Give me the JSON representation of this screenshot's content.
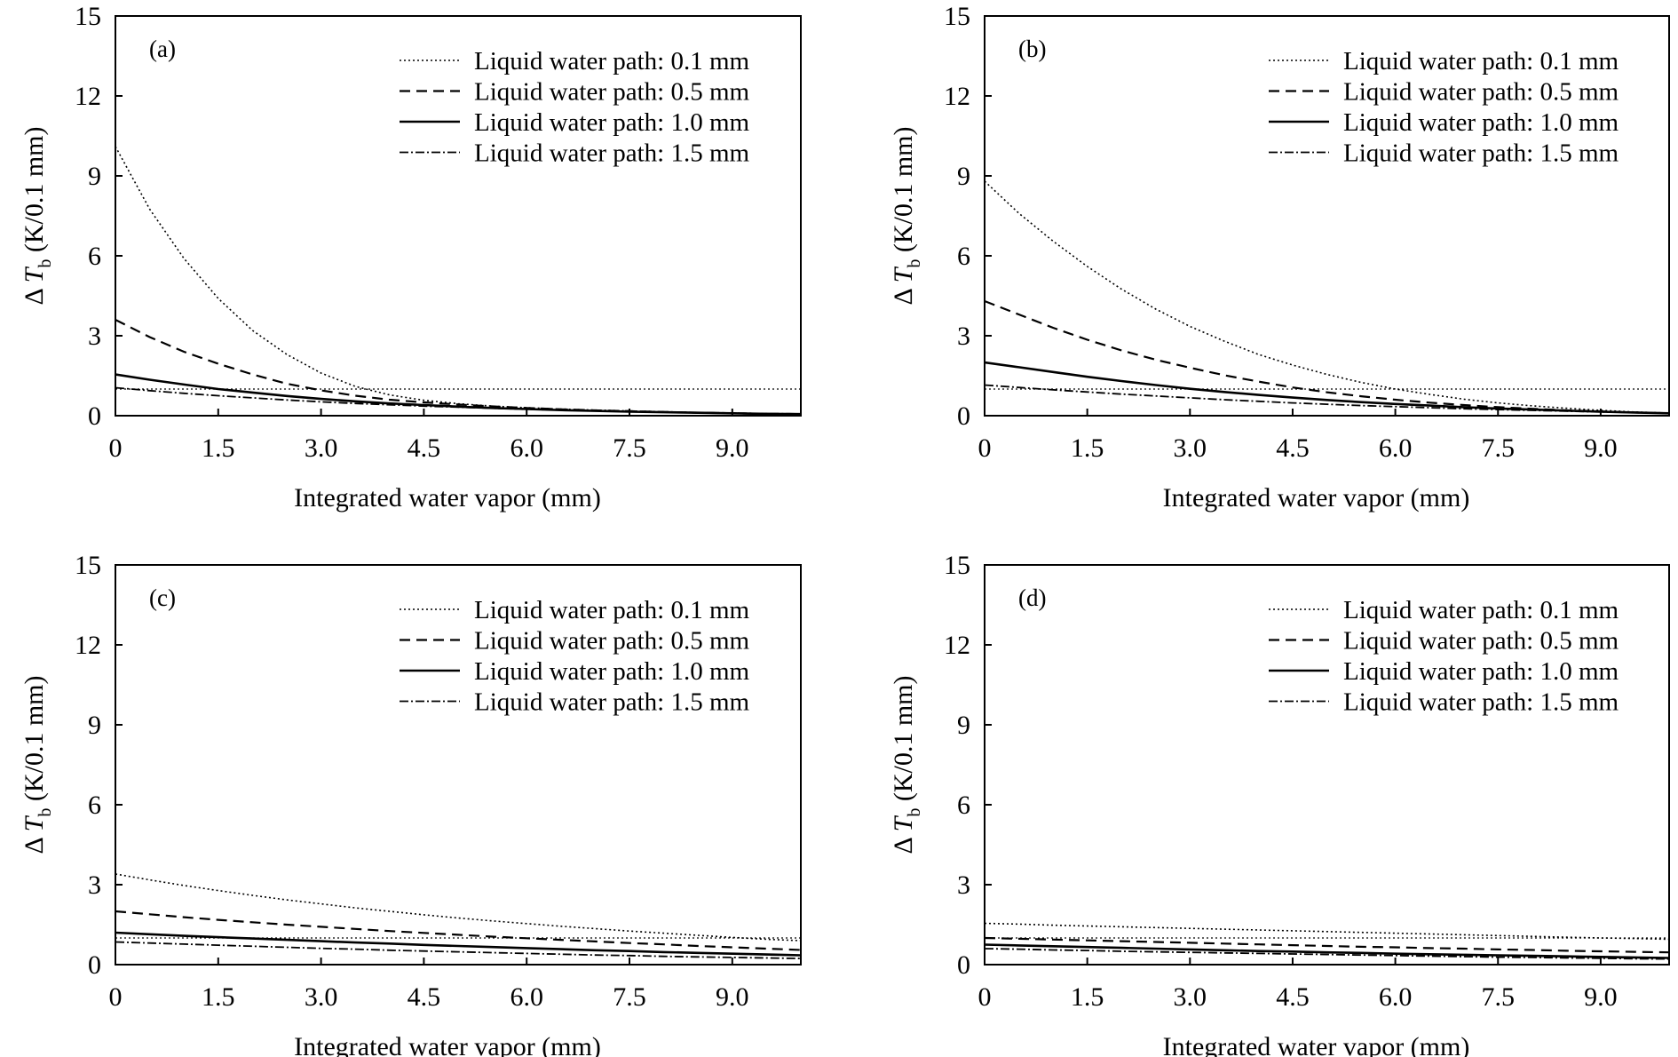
{
  "figure": {
    "y_title_prefix": "Δ ",
    "y_title_var": "T",
    "y_title_sub": "b",
    "y_title_unit": " (K/0.1 mm)",
    "colors": {
      "ink": "#000000",
      "background": "#ffffff"
    }
  },
  "chart_data": [
    {
      "panel": "(a)",
      "type": "line",
      "xlabel": "Integrated water vapor (mm)",
      "ylabel": "ΔTb (K/0.1 mm)",
      "xlim": [
        0,
        10
      ],
      "ylim": [
        0,
        15
      ],
      "xticks": [
        "0",
        "1.5",
        "3.0",
        "4.5",
        "6.0",
        "7.5",
        "9.0"
      ],
      "yticks": [
        "0",
        "3",
        "6",
        "9",
        "12",
        "15"
      ],
      "legend_position": "top-right",
      "x": [
        0,
        0.5,
        1,
        1.5,
        2,
        2.5,
        3,
        3.5,
        4,
        4.5,
        5,
        5.5,
        6,
        6.5,
        7,
        7.5,
        8,
        8.5,
        9,
        9.5,
        10
      ],
      "series": [
        {
          "name": "Liquid water path: 0.1 mm",
          "style": "dotted",
          "values": [
            10.1,
            7.75,
            5.9,
            4.4,
            3.2,
            2.3,
            1.6,
            1.1,
            0.78,
            0.58,
            0.45,
            0.36,
            0.3,
            0.25,
            0.21,
            0.18,
            0.15,
            0.12,
            0.1,
            0.07,
            0.05
          ]
        },
        {
          "name": "Liquid water path: 0.5 mm",
          "style": "dashed",
          "values": [
            3.6,
            2.95,
            2.4,
            1.95,
            1.55,
            1.2,
            0.95,
            0.75,
            0.6,
            0.5,
            0.42,
            0.35,
            0.29,
            0.24,
            0.2,
            0.17,
            0.14,
            0.11,
            0.09,
            0.07,
            0.05
          ]
        },
        {
          "name": "Liquid water path: 1.0 mm",
          "style": "solid",
          "values": [
            1.55,
            1.35,
            1.17,
            1.0,
            0.87,
            0.74,
            0.63,
            0.54,
            0.46,
            0.4,
            0.34,
            0.29,
            0.25,
            0.21,
            0.18,
            0.15,
            0.13,
            0.11,
            0.09,
            0.07,
            0.06
          ]
        },
        {
          "name": "Liquid water path: 1.5 mm",
          "style": "dashdot",
          "values": [
            1.05,
            0.94,
            0.84,
            0.75,
            0.67,
            0.59,
            0.52,
            0.46,
            0.41,
            0.36,
            0.32,
            0.28,
            0.24,
            0.21,
            0.18,
            0.16,
            0.14,
            0.12,
            0.1,
            0.08,
            0.07
          ]
        }
      ],
      "reference_line": {
        "y": 1.0,
        "style": "dotted"
      }
    },
    {
      "panel": "(b)",
      "type": "line",
      "xlabel": "Integrated water vapor (mm)",
      "ylabel": "ΔTb (K/0.1 mm)",
      "xlim": [
        0,
        10
      ],
      "ylim": [
        0,
        15
      ],
      "xticks": [
        "0",
        "1.5",
        "3.0",
        "4.5",
        "6.0",
        "7.5",
        "9.0"
      ],
      "yticks": [
        "0",
        "3",
        "6",
        "9",
        "12",
        "15"
      ],
      "legend_position": "top-right",
      "x": [
        0,
        0.5,
        1,
        1.5,
        2,
        2.5,
        3,
        3.5,
        4,
        4.5,
        5,
        5.5,
        6,
        6.5,
        7,
        7.5,
        8,
        8.5,
        9,
        9.5,
        10
      ],
      "series": [
        {
          "name": "Liquid water path: 0.1 mm",
          "style": "dotted",
          "values": [
            8.8,
            7.6,
            6.55,
            5.6,
            4.75,
            4.0,
            3.35,
            2.8,
            2.3,
            1.9,
            1.55,
            1.25,
            1.0,
            0.8,
            0.62,
            0.48,
            0.37,
            0.28,
            0.2,
            0.14,
            0.1
          ]
        },
        {
          "name": "Liquid water path: 0.5 mm",
          "style": "dashed",
          "values": [
            4.3,
            3.8,
            3.3,
            2.85,
            2.45,
            2.1,
            1.8,
            1.52,
            1.28,
            1.06,
            0.88,
            0.73,
            0.6,
            0.49,
            0.4,
            0.32,
            0.26,
            0.2,
            0.16,
            0.12,
            0.09
          ]
        },
        {
          "name": "Liquid water path: 1.0 mm",
          "style": "solid",
          "values": [
            2.0,
            1.82,
            1.64,
            1.46,
            1.3,
            1.15,
            1.01,
            0.89,
            0.78,
            0.68,
            0.59,
            0.51,
            0.44,
            0.38,
            0.32,
            0.27,
            0.23,
            0.19,
            0.15,
            0.12,
            0.09
          ]
        },
        {
          "name": "Liquid water path: 1.5 mm",
          "style": "dashdot",
          "values": [
            1.15,
            1.06,
            0.97,
            0.89,
            0.81,
            0.74,
            0.67,
            0.6,
            0.54,
            0.48,
            0.43,
            0.38,
            0.34,
            0.3,
            0.26,
            0.23,
            0.2,
            0.17,
            0.14,
            0.12,
            0.1
          ]
        }
      ],
      "reference_line": {
        "y": 1.0,
        "style": "dotted"
      }
    },
    {
      "panel": "(c)",
      "type": "line",
      "xlabel": "Integrated water vapor (mm)",
      "ylabel": "ΔTb (K/0.1 mm)",
      "xlim": [
        0,
        10
      ],
      "ylim": [
        0,
        15
      ],
      "xticks": [
        "0",
        "1.5",
        "3.0",
        "4.5",
        "6.0",
        "7.5",
        "9.0"
      ],
      "yticks": [
        "0",
        "3",
        "6",
        "9",
        "12",
        "15"
      ],
      "legend_position": "top-right",
      "x": [
        0,
        0.5,
        1,
        1.5,
        2,
        2.5,
        3,
        3.5,
        4,
        4.5,
        5,
        5.5,
        6,
        6.5,
        7,
        7.5,
        8,
        8.5,
        9,
        9.5,
        10
      ],
      "series": [
        {
          "name": "Liquid water path: 0.1 mm",
          "style": "dotted",
          "values": [
            3.4,
            3.18,
            2.97,
            2.78,
            2.6,
            2.43,
            2.28,
            2.13,
            2.0,
            1.87,
            1.75,
            1.64,
            1.54,
            1.44,
            1.35,
            1.26,
            1.18,
            1.1,
            1.02,
            0.95,
            0.9
          ]
        },
        {
          "name": "Liquid water path: 0.5 mm",
          "style": "dashed",
          "values": [
            2.0,
            1.89,
            1.78,
            1.68,
            1.59,
            1.5,
            1.42,
            1.34,
            1.26,
            1.19,
            1.12,
            1.05,
            0.99,
            0.93,
            0.87,
            0.81,
            0.76,
            0.7,
            0.65,
            0.6,
            0.55
          ]
        },
        {
          "name": "Liquid water path: 1.0 mm",
          "style": "solid",
          "values": [
            1.2,
            1.14,
            1.08,
            1.03,
            0.98,
            0.93,
            0.88,
            0.83,
            0.79,
            0.74,
            0.7,
            0.66,
            0.62,
            0.58,
            0.54,
            0.51,
            0.47,
            0.44,
            0.41,
            0.38,
            0.35
          ]
        },
        {
          "name": "Liquid water path: 1.5 mm",
          "style": "dashdot",
          "values": [
            0.85,
            0.81,
            0.77,
            0.73,
            0.69,
            0.65,
            0.61,
            0.58,
            0.54,
            0.51,
            0.48,
            0.45,
            0.42,
            0.39,
            0.36,
            0.34,
            0.31,
            0.29,
            0.27,
            0.25,
            0.23
          ]
        }
      ],
      "reference_line": {
        "y": 1.0,
        "style": "dotted"
      }
    },
    {
      "panel": "(d)",
      "type": "line",
      "xlabel": "Integrated water vapor (mm)",
      "ylabel": "ΔTb (K/0.1 mm)",
      "xlim": [
        0,
        10
      ],
      "ylim": [
        0,
        15
      ],
      "xticks": [
        "0",
        "1.5",
        "3.0",
        "4.5",
        "6.0",
        "7.5",
        "9.0"
      ],
      "yticks": [
        "0",
        "3",
        "6",
        "9",
        "12",
        "15"
      ],
      "legend_position": "top-right",
      "x": [
        0,
        0.5,
        1,
        1.5,
        2,
        2.5,
        3,
        3.5,
        4,
        4.5,
        5,
        5.5,
        6,
        6.5,
        7,
        7.5,
        8,
        8.5,
        9,
        9.5,
        10
      ],
      "series": [
        {
          "name": "Liquid water path: 0.1 mm",
          "style": "dotted",
          "values": [
            1.55,
            1.52,
            1.48,
            1.45,
            1.42,
            1.39,
            1.36,
            1.33,
            1.3,
            1.27,
            1.24,
            1.21,
            1.18,
            1.15,
            1.12,
            1.09,
            1.06,
            1.03,
            1.0,
            0.98,
            0.95
          ]
        },
        {
          "name": "Liquid water path: 0.5 mm",
          "style": "dashed",
          "values": [
            1.0,
            0.97,
            0.94,
            0.91,
            0.88,
            0.85,
            0.82,
            0.79,
            0.76,
            0.73,
            0.7,
            0.67,
            0.65,
            0.62,
            0.6,
            0.57,
            0.55,
            0.52,
            0.5,
            0.48,
            0.46
          ]
        },
        {
          "name": "Liquid water path: 1.0 mm",
          "style": "solid",
          "values": [
            0.75,
            0.72,
            0.69,
            0.66,
            0.63,
            0.6,
            0.57,
            0.54,
            0.51,
            0.49,
            0.46,
            0.44,
            0.41,
            0.39,
            0.37,
            0.35,
            0.33,
            0.31,
            0.29,
            0.27,
            0.25
          ]
        },
        {
          "name": "Liquid water path: 1.5 mm",
          "style": "dashdot",
          "values": [
            0.6,
            0.58,
            0.55,
            0.53,
            0.5,
            0.48,
            0.46,
            0.44,
            0.42,
            0.4,
            0.38,
            0.36,
            0.34,
            0.32,
            0.3,
            0.28,
            0.27,
            0.25,
            0.24,
            0.22,
            0.21
          ]
        }
      ],
      "reference_line": {
        "y": 1.0,
        "style": "dotted"
      }
    }
  ]
}
